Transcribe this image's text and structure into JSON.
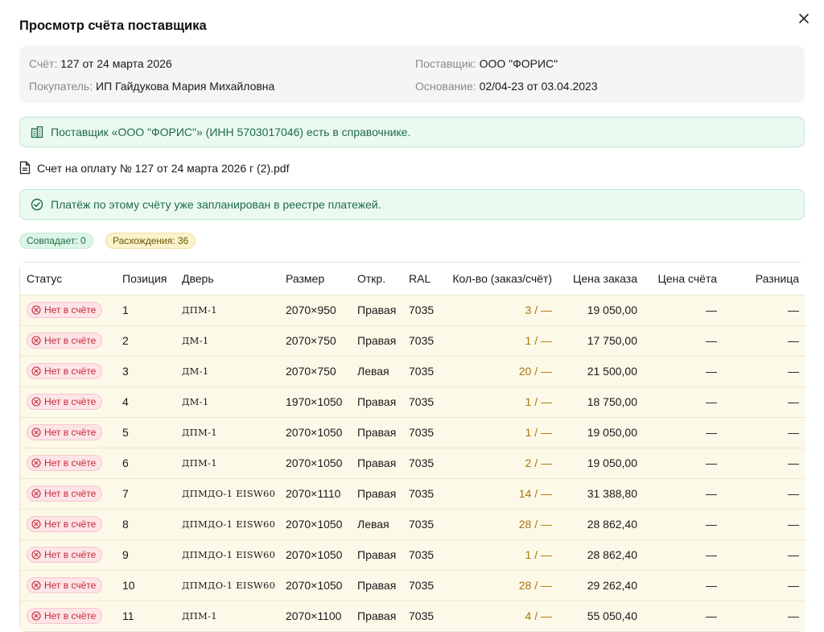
{
  "modal": {
    "title": "Просмотр счёта поставщика"
  },
  "info": {
    "invoice_label": "Счёт:",
    "invoice_value": "127 от 24 марта 2026",
    "supplier_label": "Поставщик:",
    "supplier_value": "ООО \"ФОРИС\"",
    "buyer_label": "Покупатель:",
    "buyer_value": "ИП Гайдукова Мария Михайловна",
    "basis_label": "Основание:",
    "basis_value": "02/04-23 от 03.04.2023"
  },
  "alerts": {
    "supplier_found": "Поставщик «ООО \"ФОРИС\"» (ИНН 5703017046) есть в справочнике.",
    "payment_planned": "Платёж по этому счёту уже запланирован в реестре платежей."
  },
  "file": {
    "name": "Счет на оплату № 127 от 24 марта 2026 г (2).pdf"
  },
  "chips": {
    "match": "Совпадает: 0",
    "diff": "Расхождения: 36"
  },
  "table": {
    "headers": [
      "Статус",
      "Позиция",
      "Дверь",
      "Размер",
      "Откр.",
      "RAL",
      "Кол-во (заказ/счёт)",
      "Цена заказа",
      "Цена счёта",
      "Разница"
    ],
    "rows": [
      {
        "status": "Нет в счёте",
        "pos": "1",
        "door": "ДПМ-1",
        "size": "2070×950",
        "open": "Правая",
        "ral": "7035",
        "qty": "3 / —",
        "order_price": "19 050,00",
        "invoice_price": "—",
        "diff": "—"
      },
      {
        "status": "Нет в счёте",
        "pos": "2",
        "door": "ДМ-1",
        "size": "2070×750",
        "open": "Правая",
        "ral": "7035",
        "qty": "1 / —",
        "order_price": "17 750,00",
        "invoice_price": "—",
        "diff": "—"
      },
      {
        "status": "Нет в счёте",
        "pos": "3",
        "door": "ДМ-1",
        "size": "2070×750",
        "open": "Левая",
        "ral": "7035",
        "qty": "20 / —",
        "order_price": "21 500,00",
        "invoice_price": "—",
        "diff": "—"
      },
      {
        "status": "Нет в счёте",
        "pos": "4",
        "door": "ДМ-1",
        "size": "1970×1050",
        "open": "Правая",
        "ral": "7035",
        "qty": "1 / —",
        "order_price": "18 750,00",
        "invoice_price": "—",
        "diff": "—"
      },
      {
        "status": "Нет в счёте",
        "pos": "5",
        "door": "ДПМ-1",
        "size": "2070×1050",
        "open": "Правая",
        "ral": "7035",
        "qty": "1 / —",
        "order_price": "19 050,00",
        "invoice_price": "—",
        "diff": "—"
      },
      {
        "status": "Нет в счёте",
        "pos": "6",
        "door": "ДПМ-1",
        "size": "2070×1050",
        "open": "Правая",
        "ral": "7035",
        "qty": "2 / —",
        "order_price": "19 050,00",
        "invoice_price": "—",
        "diff": "—"
      },
      {
        "status": "Нет в счёте",
        "pos": "7",
        "door": "ДПМДО-1 EISW60",
        "size": "2070×1110",
        "open": "Правая",
        "ral": "7035",
        "qty": "14 / —",
        "order_price": "31 388,80",
        "invoice_price": "—",
        "diff": "—"
      },
      {
        "status": "Нет в счёте",
        "pos": "8",
        "door": "ДПМДО-1 EISW60",
        "size": "2070×1050",
        "open": "Левая",
        "ral": "7035",
        "qty": "28 / —",
        "order_price": "28 862,40",
        "invoice_price": "—",
        "diff": "—"
      },
      {
        "status": "Нет в счёте",
        "pos": "9",
        "door": "ДПМДО-1 EISW60",
        "size": "2070×1050",
        "open": "Правая",
        "ral": "7035",
        "qty": "1 / —",
        "order_price": "28 862,40",
        "invoice_price": "—",
        "diff": "—"
      },
      {
        "status": "Нет в счёте",
        "pos": "10",
        "door": "ДПМДО-1 EISW60",
        "size": "2070×1050",
        "open": "Правая",
        "ral": "7035",
        "qty": "28 / —",
        "order_price": "29 262,40",
        "invoice_price": "—",
        "diff": "—"
      },
      {
        "status": "Нет в счёте",
        "pos": "11",
        "door": "ДПМ-1",
        "size": "2070×1100",
        "open": "Правая",
        "ral": "7035",
        "qty": "4 / —",
        "order_price": "55 050,40",
        "invoice_price": "—",
        "diff": "—"
      }
    ]
  },
  "colors": {
    "success_bg": "#eafaf1",
    "success_text": "#1e6b45",
    "warning_bg": "#fbf3cc",
    "row_bg": "#fdf9e8",
    "qty_text": "#a8750a",
    "error_text": "#c22a3a"
  },
  "icons": {
    "close": "close-icon",
    "building": "building-icon",
    "document": "document-icon",
    "check_circle": "check-circle-icon",
    "x_circle": "x-circle-icon"
  }
}
